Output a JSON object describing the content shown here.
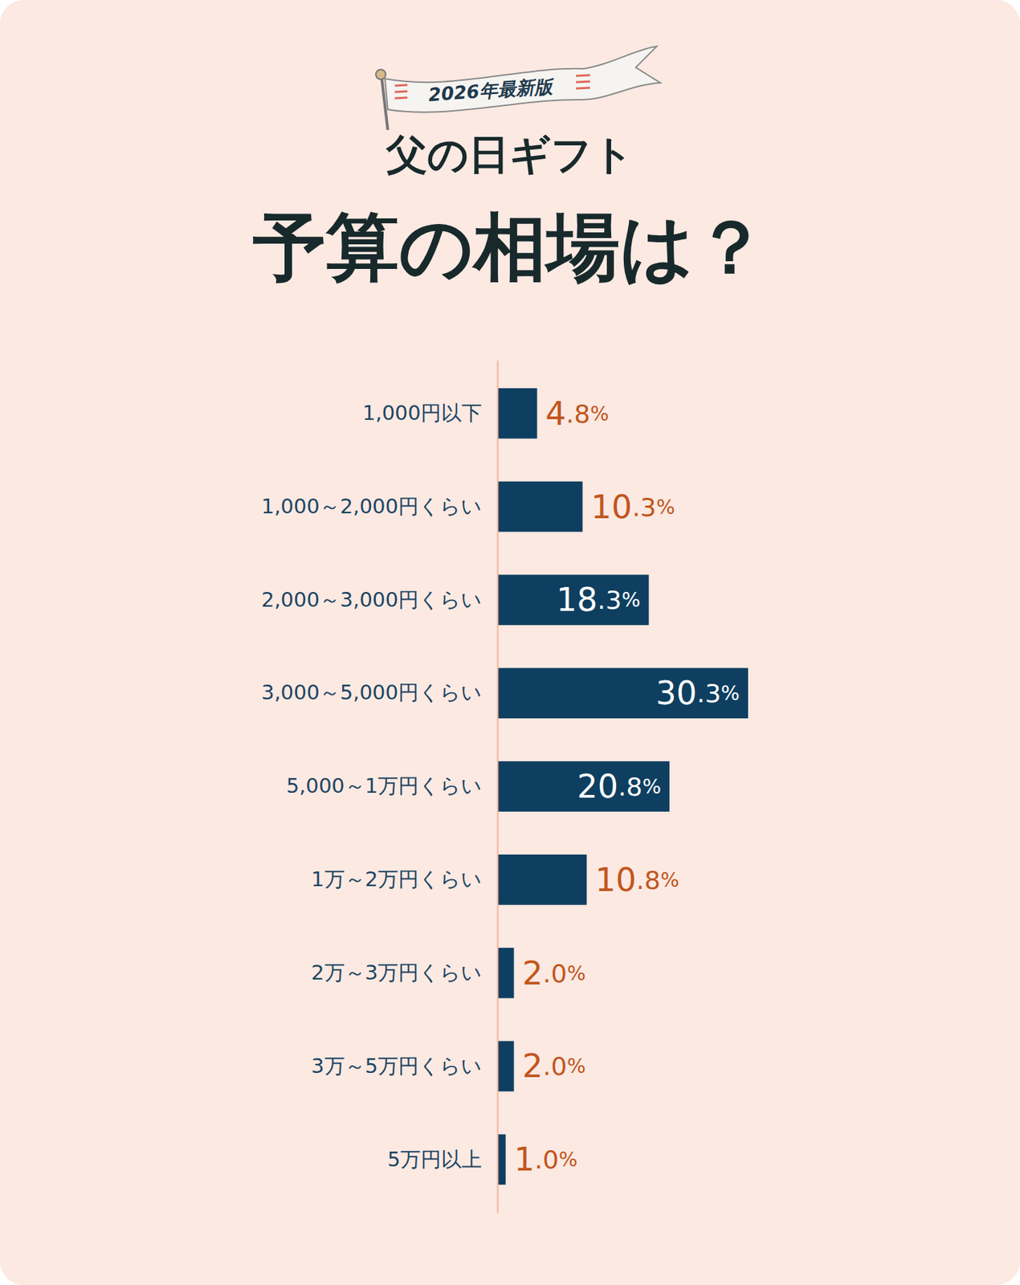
{
  "chart_data": {
    "type": "bar",
    "orientation": "horizontal",
    "annotations": [
      "2026年最新版"
    ],
    "subtitle": "父の日ギフト",
    "title": "予算の相場は？",
    "categories": [
      "1,000円以下",
      "1,000～2,000円くらい",
      "2,000～3,000円くらい",
      "3,000～5,000円くらい",
      "5,000～1万円くらい",
      "1万～2万円くらい",
      "2万～3万円くらい",
      "3万～5万円くらい",
      "5万円以上"
    ],
    "values": [
      4.8,
      10.3,
      18.3,
      30.3,
      20.8,
      10.8,
      2.0,
      2.0,
      1.0
    ],
    "value_labels": [
      "4.8%",
      "10.3%",
      "18.3%",
      "30.3%",
      "20.8%",
      "10.8%",
      "2.0%",
      "2.0%",
      "1.0%"
    ],
    "color": "#0e3f60",
    "xlim": [
      0,
      50
    ],
    "data_labels": true,
    "tick_labels": "y"
  }
}
